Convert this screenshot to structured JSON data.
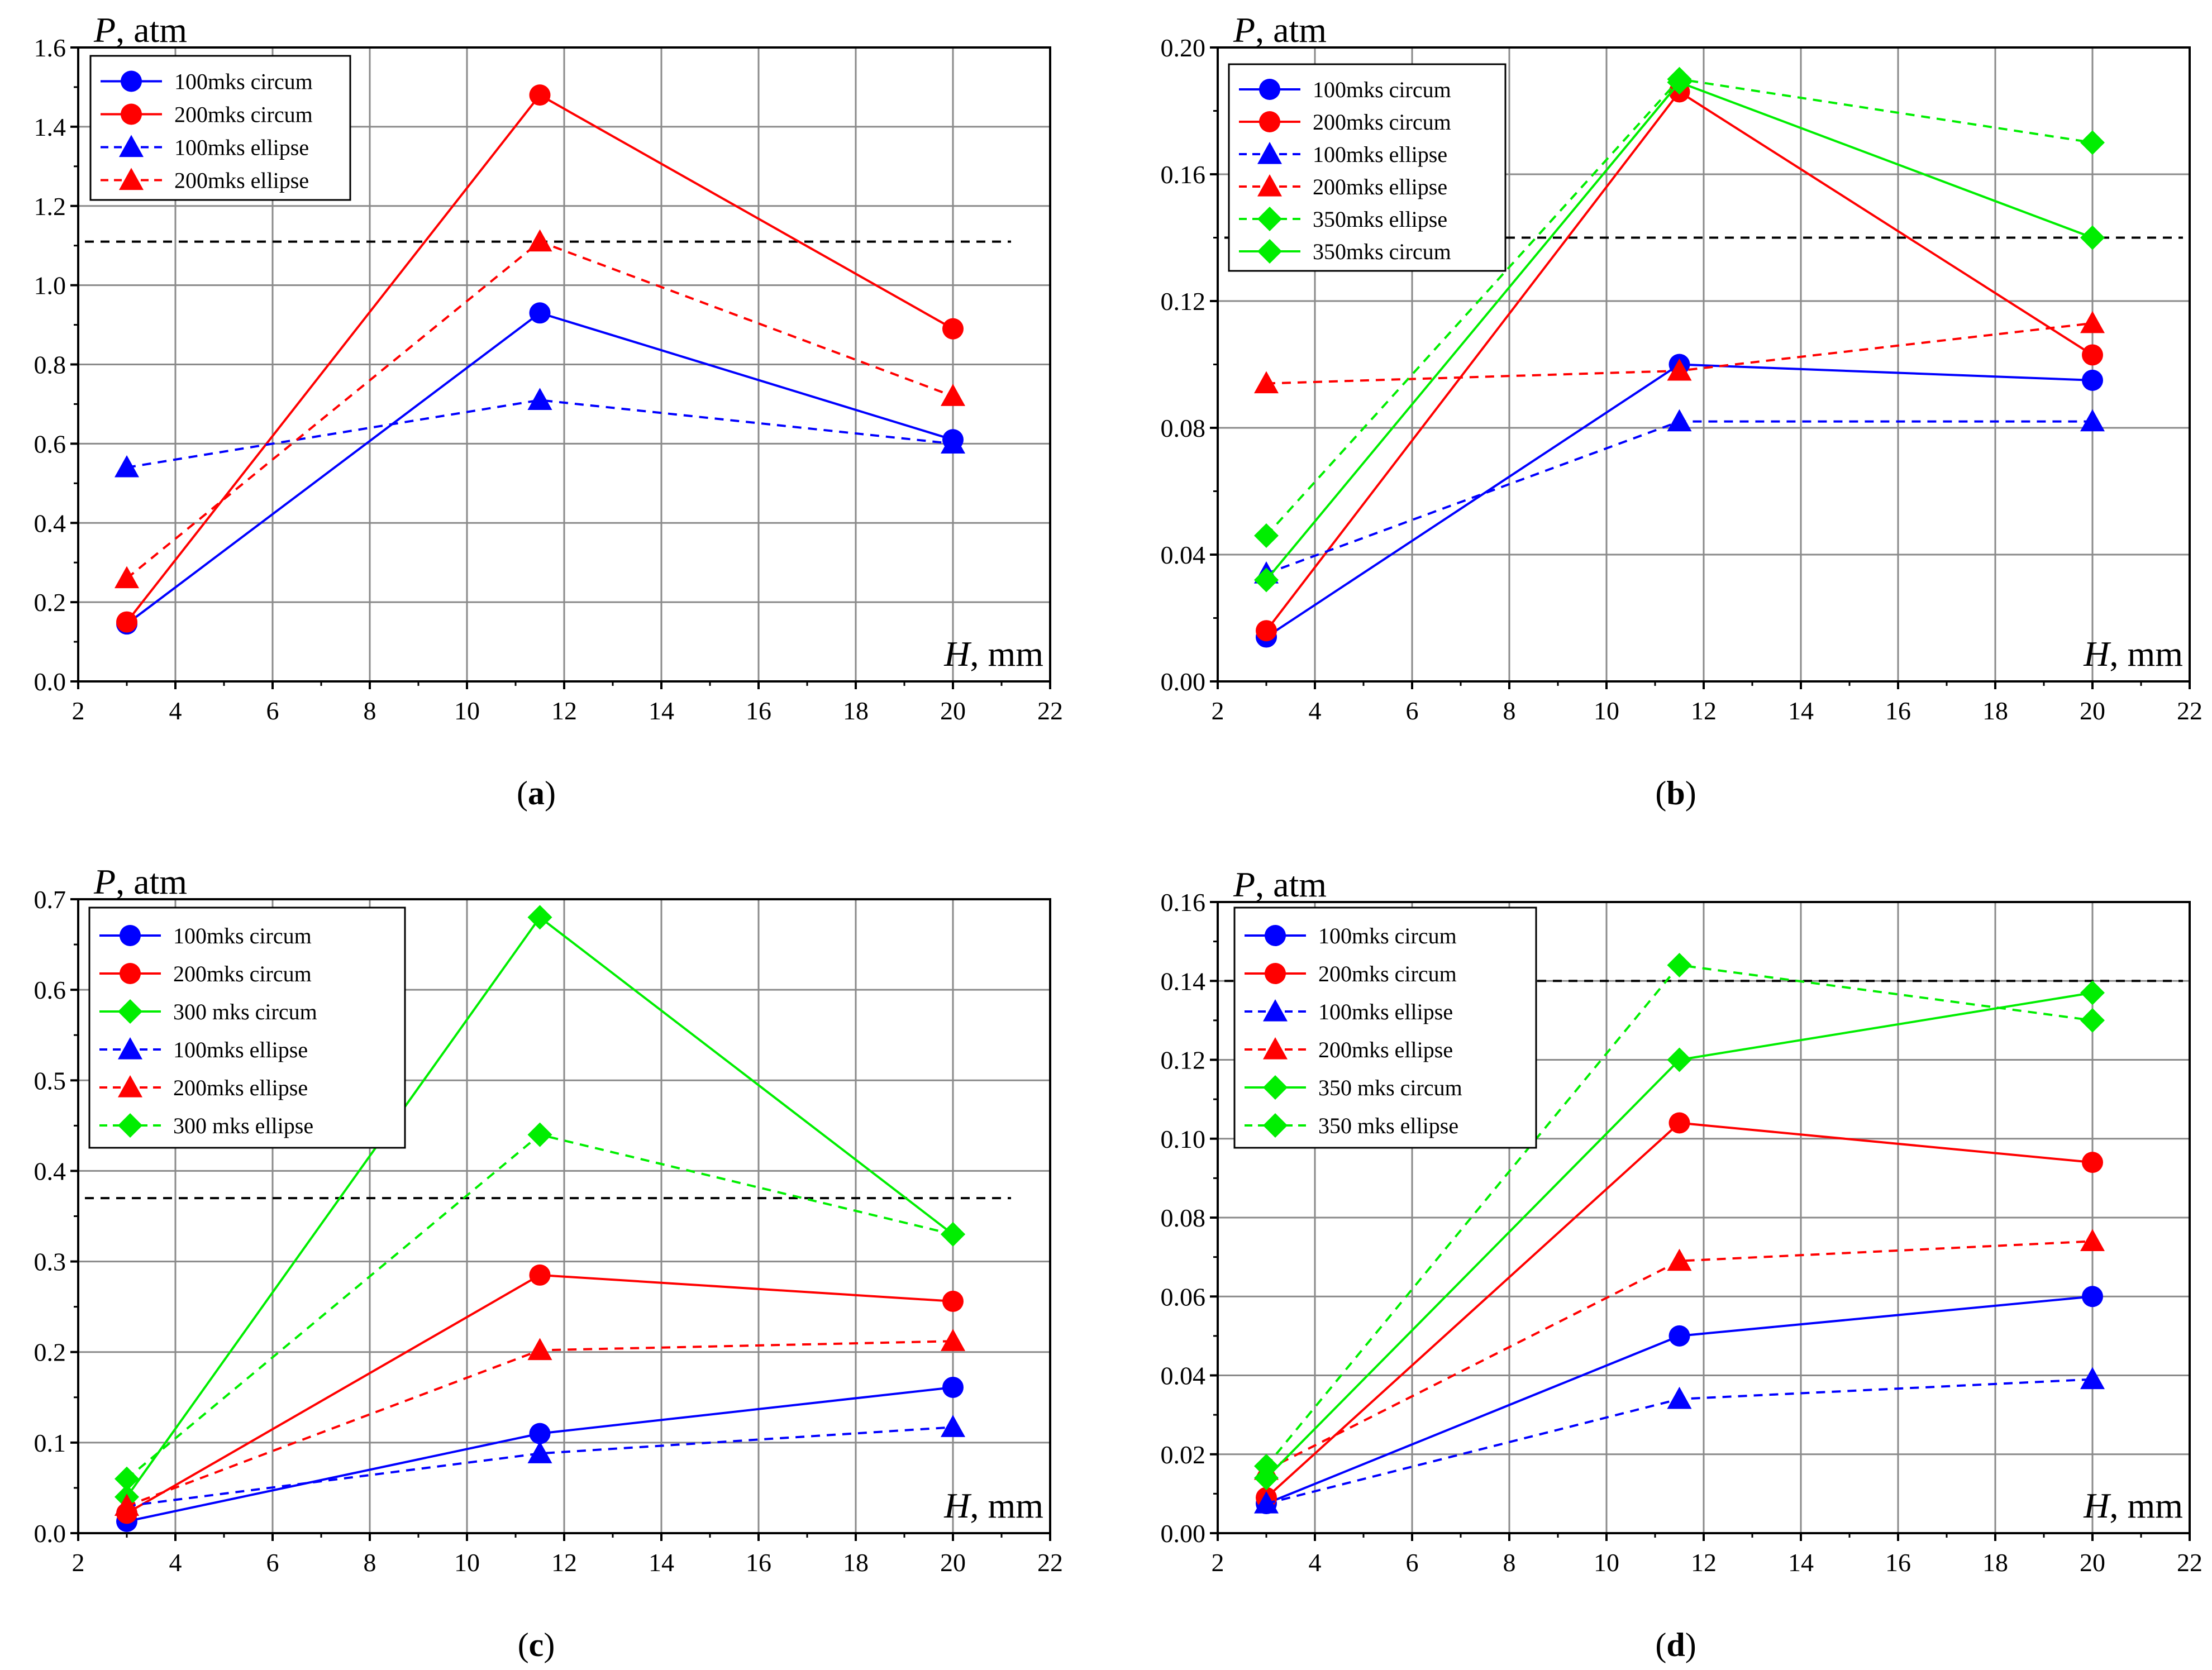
{
  "chart_data": [
    {
      "type": "line",
      "caption": "(a)",
      "caption_letter": "a",
      "ylabel": "P",
      "ylabel_unit": ", atm",
      "xlabel": "H",
      "xlabel_unit": ", mm",
      "xlim": [
        2,
        22
      ],
      "ylim": [
        0,
        1.6
      ],
      "xticks": [
        "2",
        "4",
        "6",
        "8",
        "10",
        "12",
        "14",
        "16",
        "18",
        "20",
        "22"
      ],
      "yticks": [
        "0.0",
        "0.2",
        "0.4",
        "0.6",
        "0.8",
        "1.0",
        "1.2",
        "1.4",
        "1.6"
      ],
      "x": [
        3,
        11.5,
        20
      ],
      "reference_line": 1.11,
      "series": [
        {
          "name": "100mks circum",
          "color": "#0000ff",
          "dash": "solid",
          "marker": "circle",
          "values": [
            0.145,
            0.93,
            0.61
          ]
        },
        {
          "name": "200mks circum",
          "color": "#ff0000",
          "dash": "solid",
          "marker": "circle",
          "values": [
            0.15,
            1.48,
            0.89
          ]
        },
        {
          "name": "100mks ellipse",
          "color": "#0000ff",
          "dash": "dashed",
          "marker": "triangle",
          "values": [
            0.54,
            0.71,
            0.6
          ]
        },
        {
          "name": "200mks ellipse",
          "color": "#ff0000",
          "dash": "dashed",
          "marker": "triangle",
          "values": [
            0.26,
            1.11,
            0.72
          ]
        }
      ]
    },
    {
      "type": "line",
      "caption": "(b)",
      "caption_letter": "b",
      "ylabel": "P",
      "ylabel_unit": ", atm",
      "xlabel": "H",
      "xlabel_unit": ", mm",
      "xlim": [
        2,
        22
      ],
      "ylim": [
        0,
        0.2
      ],
      "xticks": [
        "2",
        "4",
        "6",
        "8",
        "10",
        "12",
        "14",
        "16",
        "18",
        "20",
        "22"
      ],
      "yticks": [
        "0.00",
        "0.04",
        "0.08",
        "0.12",
        "0.16",
        "0.20"
      ],
      "x": [
        3,
        11.5,
        20
      ],
      "reference_line": 0.14,
      "series": [
        {
          "name": "100mks circum",
          "color": "#0000ff",
          "dash": "solid",
          "marker": "circle",
          "values": [
            0.014,
            0.1,
            0.095
          ]
        },
        {
          "name": "200mks circum",
          "color": "#ff0000",
          "dash": "solid",
          "marker": "circle",
          "values": [
            0.016,
            0.186,
            0.103
          ]
        },
        {
          "name": "100mks ellipse",
          "color": "#0000ff",
          "dash": "dashed",
          "marker": "triangle",
          "values": [
            0.034,
            0.082,
            0.082
          ]
        },
        {
          "name": "200mks ellipse",
          "color": "#ff0000",
          "dash": "dashed",
          "marker": "triangle",
          "values": [
            0.094,
            0.098,
            0.113
          ]
        },
        {
          "name": "350mks ellipse",
          "color": "#00ee00",
          "dash": "dashed",
          "marker": "diamond",
          "values": [
            0.046,
            0.19,
            0.17
          ]
        },
        {
          "name": "350mks circum",
          "color": "#00ee00",
          "dash": "solid",
          "marker": "diamond",
          "values": [
            0.032,
            0.189,
            0.14
          ]
        }
      ]
    },
    {
      "type": "line",
      "caption": "(c)",
      "caption_letter": "c",
      "ylabel": "P",
      "ylabel_unit": ", atm",
      "xlabel": "H",
      "xlabel_unit": ", mm",
      "xlim": [
        2,
        22
      ],
      "ylim": [
        0,
        0.7
      ],
      "xticks": [
        "2",
        "4",
        "6",
        "8",
        "10",
        "12",
        "14",
        "16",
        "18",
        "20",
        "22"
      ],
      "yticks": [
        "0.0",
        "0.1",
        "0.2",
        "0.3",
        "0.4",
        "0.5",
        "0.6",
        "0.7"
      ],
      "x": [
        3,
        11.5,
        20
      ],
      "reference_line": 0.37,
      "series": [
        {
          "name": "100mks circum",
          "color": "#0000ff",
          "dash": "solid",
          "marker": "circle",
          "values": [
            0.013,
            0.11,
            0.161
          ]
        },
        {
          "name": "200mks circum",
          "color": "#ff0000",
          "dash": "solid",
          "marker": "circle",
          "values": [
            0.022,
            0.285,
            0.256
          ]
        },
        {
          "name": "300 mks circum",
          "color": "#00ee00",
          "dash": "solid",
          "marker": "diamond",
          "values": [
            0.04,
            0.68,
            0.33
          ]
        },
        {
          "name": "100mks ellipse",
          "color": "#0000ff",
          "dash": "dashed",
          "marker": "triangle",
          "values": [
            0.03,
            0.088,
            0.117
          ]
        },
        {
          "name": "200mks ellipse",
          "color": "#ff0000",
          "dash": "dashed",
          "marker": "triangle",
          "values": [
            0.03,
            0.202,
            0.212
          ]
        },
        {
          "name": "300 mks ellipse",
          "color": "#00ee00",
          "dash": "dashed",
          "marker": "diamond",
          "values": [
            0.06,
            0.44,
            0.33
          ]
        }
      ]
    },
    {
      "type": "line",
      "caption": "(d)",
      "caption_letter": "d",
      "ylabel": "P",
      "ylabel_unit": ", atm",
      "xlabel": "H",
      "xlabel_unit": ", mm",
      "xlim": [
        2,
        22
      ],
      "ylim": [
        0,
        0.16
      ],
      "xticks": [
        "2",
        "4",
        "6",
        "8",
        "10",
        "12",
        "14",
        "16",
        "18",
        "20",
        "22"
      ],
      "yticks": [
        "0.00",
        "0.02",
        "0.04",
        "0.06",
        "0.08",
        "0.10",
        "0.12",
        "0.14",
        "0.16"
      ],
      "x": [
        3,
        11.5,
        20
      ],
      "reference_line": 0.14,
      "series": [
        {
          "name": "100mks circum",
          "color": "#0000ff",
          "dash": "solid",
          "marker": "circle",
          "values": [
            0.0075,
            0.05,
            0.06
          ]
        },
        {
          "name": "200mks circum",
          "color": "#ff0000",
          "dash": "solid",
          "marker": "circle",
          "values": [
            0.009,
            0.104,
            0.094
          ]
        },
        {
          "name": "100mks ellipse",
          "color": "#0000ff",
          "dash": "dashed",
          "marker": "triangle",
          "values": [
            0.0075,
            0.034,
            0.039
          ]
        },
        {
          "name": "200mks ellipse",
          "color": "#ff0000",
          "dash": "dashed",
          "marker": "triangle",
          "values": [
            0.016,
            0.069,
            0.074
          ]
        },
        {
          "name": "350 mks circum",
          "color": "#00ee00",
          "dash": "solid",
          "marker": "diamond",
          "values": [
            0.014,
            0.12,
            0.137
          ]
        },
        {
          "name": "350 mks ellipse",
          "color": "#00ee00",
          "dash": "dashed",
          "marker": "diamond",
          "values": [
            0.017,
            0.144,
            0.13
          ]
        }
      ]
    }
  ]
}
